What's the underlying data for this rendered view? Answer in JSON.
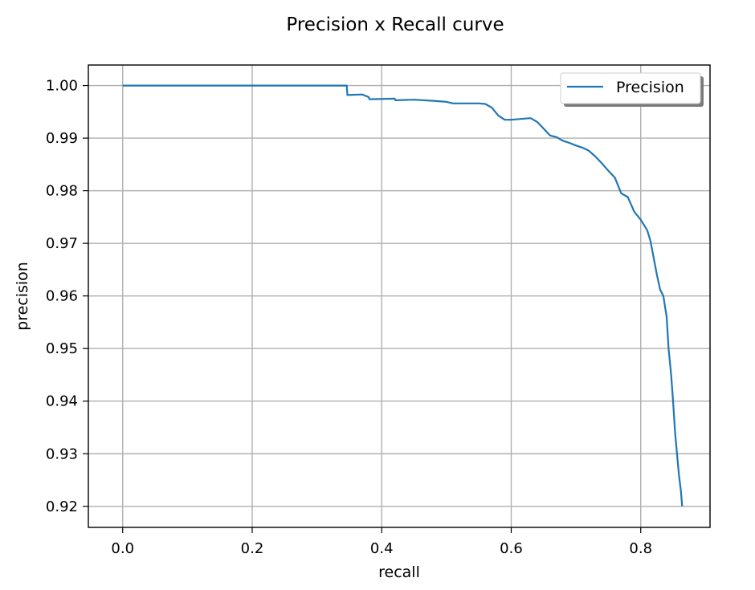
{
  "chart_data": {
    "type": "line",
    "title": "Precision x Recall curve",
    "xlabel": "recall",
    "ylabel": "precision",
    "xlim": [
      -0.053,
      0.907
    ],
    "ylim": [
      0.916,
      1.0039
    ],
    "xticks": [
      "0.0",
      "0.2",
      "0.4",
      "0.6",
      "0.8"
    ],
    "xtick_values": [
      0.0,
      0.2,
      0.4,
      0.6,
      0.8
    ],
    "yticks": [
      "0.92",
      "0.93",
      "0.94",
      "0.95",
      "0.96",
      "0.97",
      "0.98",
      "0.99",
      "1.00"
    ],
    "ytick_values": [
      0.92,
      0.93,
      0.94,
      0.95,
      0.96,
      0.97,
      0.98,
      0.99,
      1.0
    ],
    "grid": true,
    "legend_position": "top-right",
    "series": [
      {
        "name": "Precision",
        "color": "#1f77b4",
        "x": [
          0.0,
          0.1,
          0.2,
          0.3,
          0.346,
          0.347,
          0.37,
          0.38,
          0.381,
          0.42,
          0.421,
          0.45,
          0.48,
          0.5,
          0.51,
          0.53,
          0.55,
          0.56,
          0.57,
          0.58,
          0.59,
          0.6,
          0.62,
          0.63,
          0.64,
          0.65,
          0.66,
          0.67,
          0.68,
          0.69,
          0.7,
          0.71,
          0.72,
          0.73,
          0.74,
          0.75,
          0.76,
          0.77,
          0.78,
          0.79,
          0.8,
          0.81,
          0.815,
          0.82,
          0.825,
          0.83,
          0.835,
          0.84,
          0.843,
          0.847,
          0.85,
          0.853,
          0.856,
          0.859,
          0.862,
          0.864
        ],
        "y": [
          1.0,
          1.0,
          1.0,
          1.0,
          1.0,
          0.9982,
          0.9983,
          0.9978,
          0.9974,
          0.9975,
          0.9972,
          0.9973,
          0.9971,
          0.9969,
          0.9966,
          0.9966,
          0.9966,
          0.9965,
          0.9958,
          0.9943,
          0.9935,
          0.9935,
          0.9937,
          0.9938,
          0.9931,
          0.9918,
          0.9905,
          0.9902,
          0.9895,
          0.9891,
          0.9886,
          0.9882,
          0.9876,
          0.9865,
          0.9852,
          0.9838,
          0.9825,
          0.9795,
          0.9788,
          0.976,
          0.9745,
          0.9725,
          0.9705,
          0.9672,
          0.964,
          0.9612,
          0.96,
          0.956,
          0.95,
          0.945,
          0.94,
          0.934,
          0.93,
          0.926,
          0.923,
          0.92
        ]
      }
    ]
  }
}
